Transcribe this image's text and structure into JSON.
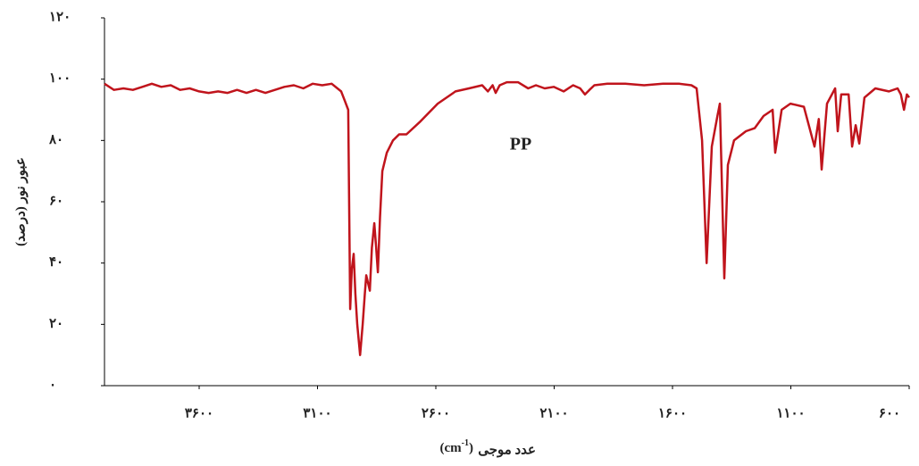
{
  "chart_data": {
    "type": "line",
    "annotation": "PP",
    "y_label": "عبور نور (درصد)",
    "x_label": "عدد موجی",
    "x_unit": [
      "(cm",
      "-1",
      ")"
    ],
    "x": [
      4000,
      3960,
      3920,
      3880,
      3840,
      3800,
      3760,
      3720,
      3680,
      3640,
      3600,
      3560,
      3520,
      3480,
      3440,
      3400,
      3360,
      3320,
      3280,
      3240,
      3200,
      3160,
      3120,
      3080,
      3040,
      3000,
      2985,
      2970,
      2962,
      2955,
      2947,
      2940,
      2932,
      2920,
      2909,
      2900,
      2894,
      2879,
      2870,
      2860,
      2852,
      2845,
      2836,
      2826,
      2807,
      2781,
      2755,
      2724,
      2668,
      2592,
      2517,
      2460,
      2404,
      2380,
      2360,
      2347,
      2330,
      2300,
      2253,
      2210,
      2177,
      2140,
      2102,
      2060,
      2020,
      1990,
      1970,
      1951,
      1930,
      1875,
      1800,
      1720,
      1640,
      1573,
      1520,
      1498,
      1475,
      1456,
      1434,
      1410,
      1400,
      1381,
      1366,
      1340,
      1290,
      1253,
      1215,
      1177,
      1166,
      1139,
      1102,
      1045,
      1000,
      982,
      970,
      947,
      913,
      902,
      887,
      856,
      841,
      826,
      811,
      789,
      743,
      686,
      649,
      635,
      622,
      610,
      600
    ],
    "series": [
      {
        "name": "PP",
        "color": "#c0141c",
        "values": [
          98.5,
          96.5,
          97,
          96.5,
          97.5,
          98.5,
          97.5,
          98,
          96.5,
          97,
          96,
          95.5,
          96,
          95.5,
          96.5,
          95.5,
          96.5,
          95.5,
          96.5,
          97.5,
          98,
          97,
          98.5,
          98,
          98.5,
          96,
          93,
          90,
          25,
          38,
          43,
          30,
          20,
          10,
          20,
          30,
          36,
          31,
          45,
          53,
          45,
          37,
          55,
          70,
          76,
          80,
          82,
          82,
          86,
          92,
          96,
          97,
          98,
          96,
          98,
          95.5,
          98,
          99,
          99,
          97,
          98,
          97,
          97.5,
          96,
          98,
          97,
          95,
          96.5,
          98,
          98.5,
          98.5,
          98,
          98.5,
          98.5,
          98,
          97,
          80,
          40,
          78,
          88,
          92,
          35,
          72,
          80,
          83,
          84,
          88,
          90,
          76,
          90,
          92,
          91,
          78,
          87,
          70.5,
          92,
          97,
          83,
          95,
          95,
          78,
          85,
          79,
          94,
          97,
          96,
          97,
          95,
          90,
          95,
          94
        ]
      }
    ],
    "xlim": [
      4000,
      600
    ],
    "xticks": [
      {
        "value": 3600,
        "label": "۳۶۰۰"
      },
      {
        "value": 3100,
        "label": "۳۱۰۰"
      },
      {
        "value": 2600,
        "label": "۲۶۰۰"
      },
      {
        "value": 2100,
        "label": "۲۱۰۰"
      },
      {
        "value": 1600,
        "label": "۱۶۰۰"
      },
      {
        "value": 1100,
        "label": "۱۱۰۰"
      },
      {
        "value": 600,
        "label": "۶۰۰"
      }
    ],
    "ylim": [
      0,
      120
    ],
    "yticks": [
      {
        "value": 0,
        "label": "۰"
      },
      {
        "value": 20,
        "label": "۲۰"
      },
      {
        "value": 40,
        "label": "۴۰"
      },
      {
        "value": 60,
        "label": "۶۰"
      },
      {
        "value": 80,
        "label": "۸۰"
      },
      {
        "value": 100,
        "label": "۱۰۰"
      },
      {
        "value": 120,
        "label": "۱۲۰"
      }
    ],
    "grid": false
  }
}
